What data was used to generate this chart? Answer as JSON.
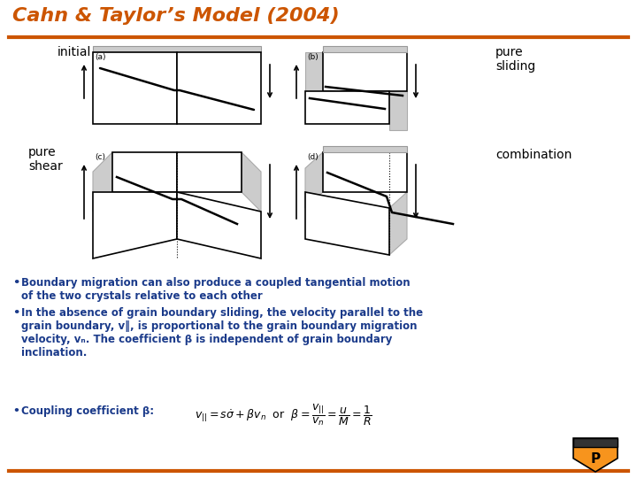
{
  "title": "Cahn & Taylor’s Model (2004)",
  "title_color": "#CC5500",
  "title_fontsize": 16,
  "bg_color": "#FFFFFF",
  "orange_line_color": "#CC5500",
  "label_initial": "initial",
  "label_pure_sliding": "pure\nsliding",
  "label_pure_shear": "pure\nshear",
  "label_combination": "combination",
  "label_a": "(a)",
  "label_b": "(b)",
  "label_c": "(c)",
  "label_d": "(d)",
  "bullet_color": "#1A3A8A",
  "bullet1": "Boundary migration can also produce a coupled tangential motion\nof the two crystals relative to each other",
  "bullet2": "In the absence of grain boundary sliding, the velocity parallel to the\ngrain boundary, v‖, is proportional to the grain boundary migration\nvelocity, vₙ. The coefficient β is independent of grain boundary\ninclination.",
  "bullet3_label": "Coupling coefficient β:",
  "diagram_lw": 1.2
}
